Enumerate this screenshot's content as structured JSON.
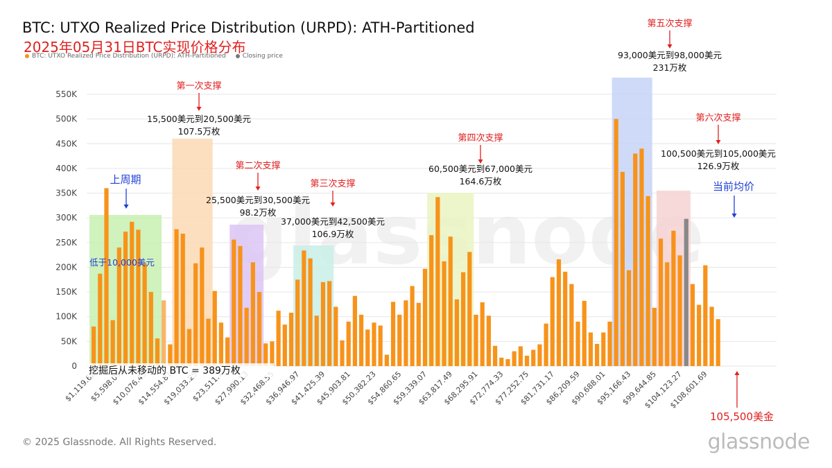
{
  "header": {
    "title": "BTC: UTXO Realized Price Distribution (URPD): ATH-Partitioned",
    "subtitle": "2025年05月31日BTC实现价格分布",
    "legend": [
      {
        "label": "BTC: UTXO Realized Price Distribution (URPD): ATH-Partitioned",
        "color": "#f7931a"
      },
      {
        "label": "Closing price",
        "color": "#777777"
      }
    ]
  },
  "footer": {
    "copyright": "© 2025 Glassnode. All Rights Reserved.",
    "logo": "glassnode"
  },
  "watermark": "glassnode",
  "chart_data": {
    "type": "bar",
    "title": "BTC: UTXO Realized Price Distribution (URPD): ATH-Partitioned",
    "ylim": [
      0,
      550000
    ],
    "y_ticks": [
      "0",
      "50K",
      "100K",
      "150K",
      "200K",
      "250K",
      "300K",
      "350K",
      "400K",
      "450K",
      "500K",
      "550K"
    ],
    "x_tick_labels": [
      "$1,119.62",
      "$5,598.09",
      "$10,076.45",
      "$14,554.81",
      "$19,033.25",
      "$23,511.7",
      "$27,990.13",
      "$32,468.55",
      "$36,946.97",
      "$41,425.39",
      "$45,903.81",
      "$50,382.23",
      "$54,860.65",
      "$59,339.07",
      "$63,817.49",
      "$68,295.91",
      "$72,774.33",
      "$77,252.75",
      "$81,731.17",
      "$86,209.59",
      "$90,688.01",
      "$95,166.43",
      "$99,644.85",
      "$104,123.27",
      "$108,601.69"
    ],
    "series": [
      {
        "values": [
          80000,
          187000,
          360000,
          93000,
          240000,
          272000,
          292000,
          276000,
          208000,
          150000,
          56000,
          133000,
          44000,
          277000,
          268000,
          75000,
          208000,
          240000,
          96000,
          152000,
          88000,
          58000,
          256000,
          243000,
          118000,
          210000,
          150000,
          46000,
          50000,
          112000,
          84000,
          108000,
          175000,
          234000,
          218000,
          102000,
          170000,
          172000,
          120000,
          52000,
          90000,
          142000,
          104000,
          74000,
          88000,
          82000,
          23000,
          130000,
          104000,
          133000,
          162000,
          128000,
          197000,
          265000,
          342000,
          212000,
          262000,
          135000,
          190000,
          231000,
          104000,
          129000,
          102000,
          41000,
          17000,
          14000,
          30000,
          40000,
          21000,
          33000,
          44000,
          86000,
          180000,
          216000,
          191000,
          166000,
          90000,
          132000,
          68000,
          45000,
          68000,
          90000,
          500000,
          393000,
          194000,
          430000,
          440000,
          344000,
          118000,
          258000,
          210000,
          274000,
          224000,
          298000,
          166000,
          124000,
          204000,
          120000,
          95000
        ],
        "highlight_index": 93,
        "color": "#f7931a",
        "highlight_color": "#888888"
      }
    ],
    "regions": [
      {
        "bars": [
          0,
          10
        ],
        "color": "#c8f0b0"
      },
      {
        "bars": [
          13,
          18
        ],
        "color": "#fcd9b4"
      },
      {
        "bars": [
          22,
          26
        ],
        "color": "#dcc6f4"
      },
      {
        "bars": [
          32,
          37
        ],
        "color": "#c9efe8"
      },
      {
        "bars": [
          53,
          59
        ],
        "color": "#eaf4c2"
      },
      {
        "bars": [
          82,
          87
        ],
        "color": "#c5d3f6"
      },
      {
        "bars": [
          89,
          93
        ],
        "color": "#f6d2d2"
      }
    ],
    "annotations": [
      {
        "text": "第一次支撑",
        "color": "#e02020"
      },
      {
        "text": "15,500美元到20,500美元",
        "color": "#111111"
      },
      {
        "text": "107.5万枚",
        "color": "#111111"
      },
      {
        "text": "第二次支撑",
        "color": "#e02020"
      },
      {
        "text": "25,500美元到30,500美元",
        "color": "#111111"
      },
      {
        "text": "98.2万枚",
        "color": "#111111"
      },
      {
        "text": "第三次支撑",
        "color": "#e02020"
      },
      {
        "text": "37,000美元到42,500美元",
        "color": "#111111"
      },
      {
        "text": "106.9万枚",
        "color": "#111111"
      },
      {
        "text": "第四次支撑",
        "color": "#e02020"
      },
      {
        "text": "60,500美元到67,000美元",
        "color": "#111111"
      },
      {
        "text": "164.6万枚",
        "color": "#111111"
      },
      {
        "text": "第五次支撑",
        "color": "#e02020"
      },
      {
        "text": "93,000美元到98,000美元",
        "color": "#111111"
      },
      {
        "text": "231万枚",
        "color": "#111111"
      },
      {
        "text": "第六次支撑",
        "color": "#e02020"
      },
      {
        "text": "100,500美元到105,000美元",
        "color": "#111111"
      },
      {
        "text": "126.9万枚",
        "color": "#111111"
      },
      {
        "text": "上周期",
        "color": "#1f3fd6"
      },
      {
        "text": "低于10,000美元",
        "color": "#1f3fd6"
      },
      {
        "text": "当前均价",
        "color": "#1f3fd6"
      },
      {
        "text": "105,500美金",
        "color": "#e02020"
      },
      {
        "text": "挖掘后从未移动的 BTC = 389万枚",
        "color": "#111111"
      }
    ]
  }
}
